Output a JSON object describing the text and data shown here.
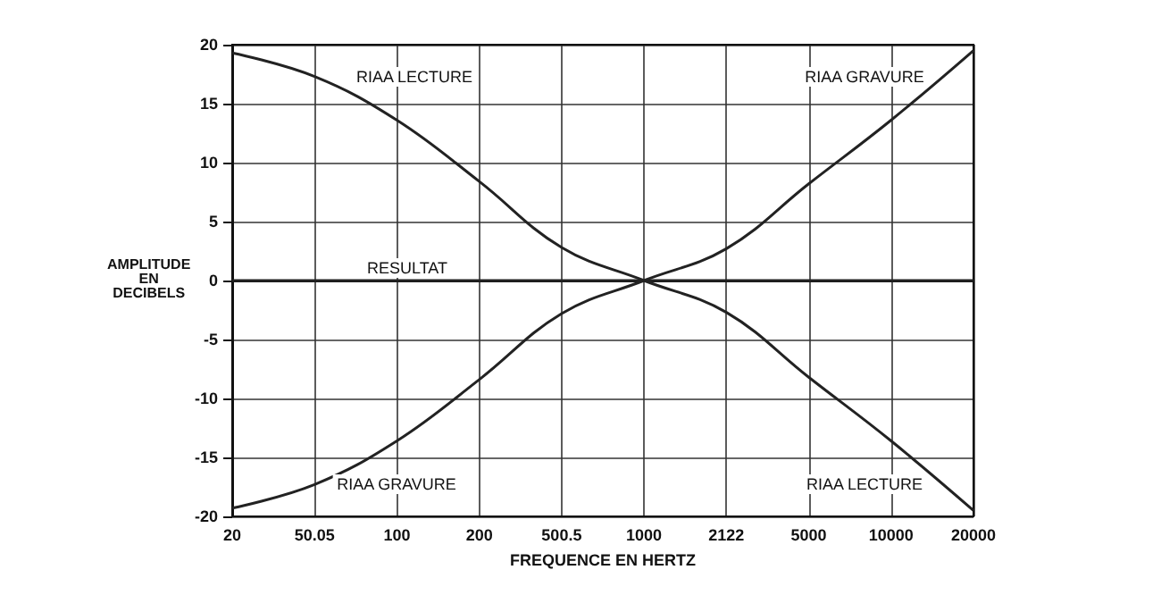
{
  "chart_data": {
    "type": "line",
    "xlabel": "FREQUENCE EN HERTZ",
    "ylabel": "AMPLITUDE\nEN\nDECIBELS",
    "categories": [
      "20",
      "50.05",
      "100",
      "200",
      "500.5",
      "1000",
      "2122",
      "5000",
      "10000",
      "20000"
    ],
    "series": [
      {
        "color": "#222222",
        "values": [
          19.3,
          17.3,
          13.6,
          8.4,
          2.8,
          0,
          -2.7,
          -8.2,
          -13.6,
          -19.5
        ]
      },
      {
        "color": "#222222",
        "values": [
          -19.3,
          -17.3,
          -13.6,
          -8.4,
          -2.8,
          0,
          2.7,
          8.2,
          13.6,
          19.5
        ]
      },
      {
        "color": "#222222",
        "values": [
          0,
          0,
          0,
          0,
          0,
          0,
          0,
          0,
          0,
          0
        ]
      }
    ],
    "ylim": [
      -20,
      20
    ],
    "yticks": [
      -20,
      -15,
      -10,
      -5,
      0,
      5,
      10,
      15,
      20
    ],
    "grid": true,
    "marker": "none",
    "line_style": "solid",
    "annotations": [
      "RIAA LECTURE",
      "RIAA GRAVURE",
      "RESULTAT",
      "RIAA GRAVURE",
      "RIAA LECTURE"
    ]
  }
}
